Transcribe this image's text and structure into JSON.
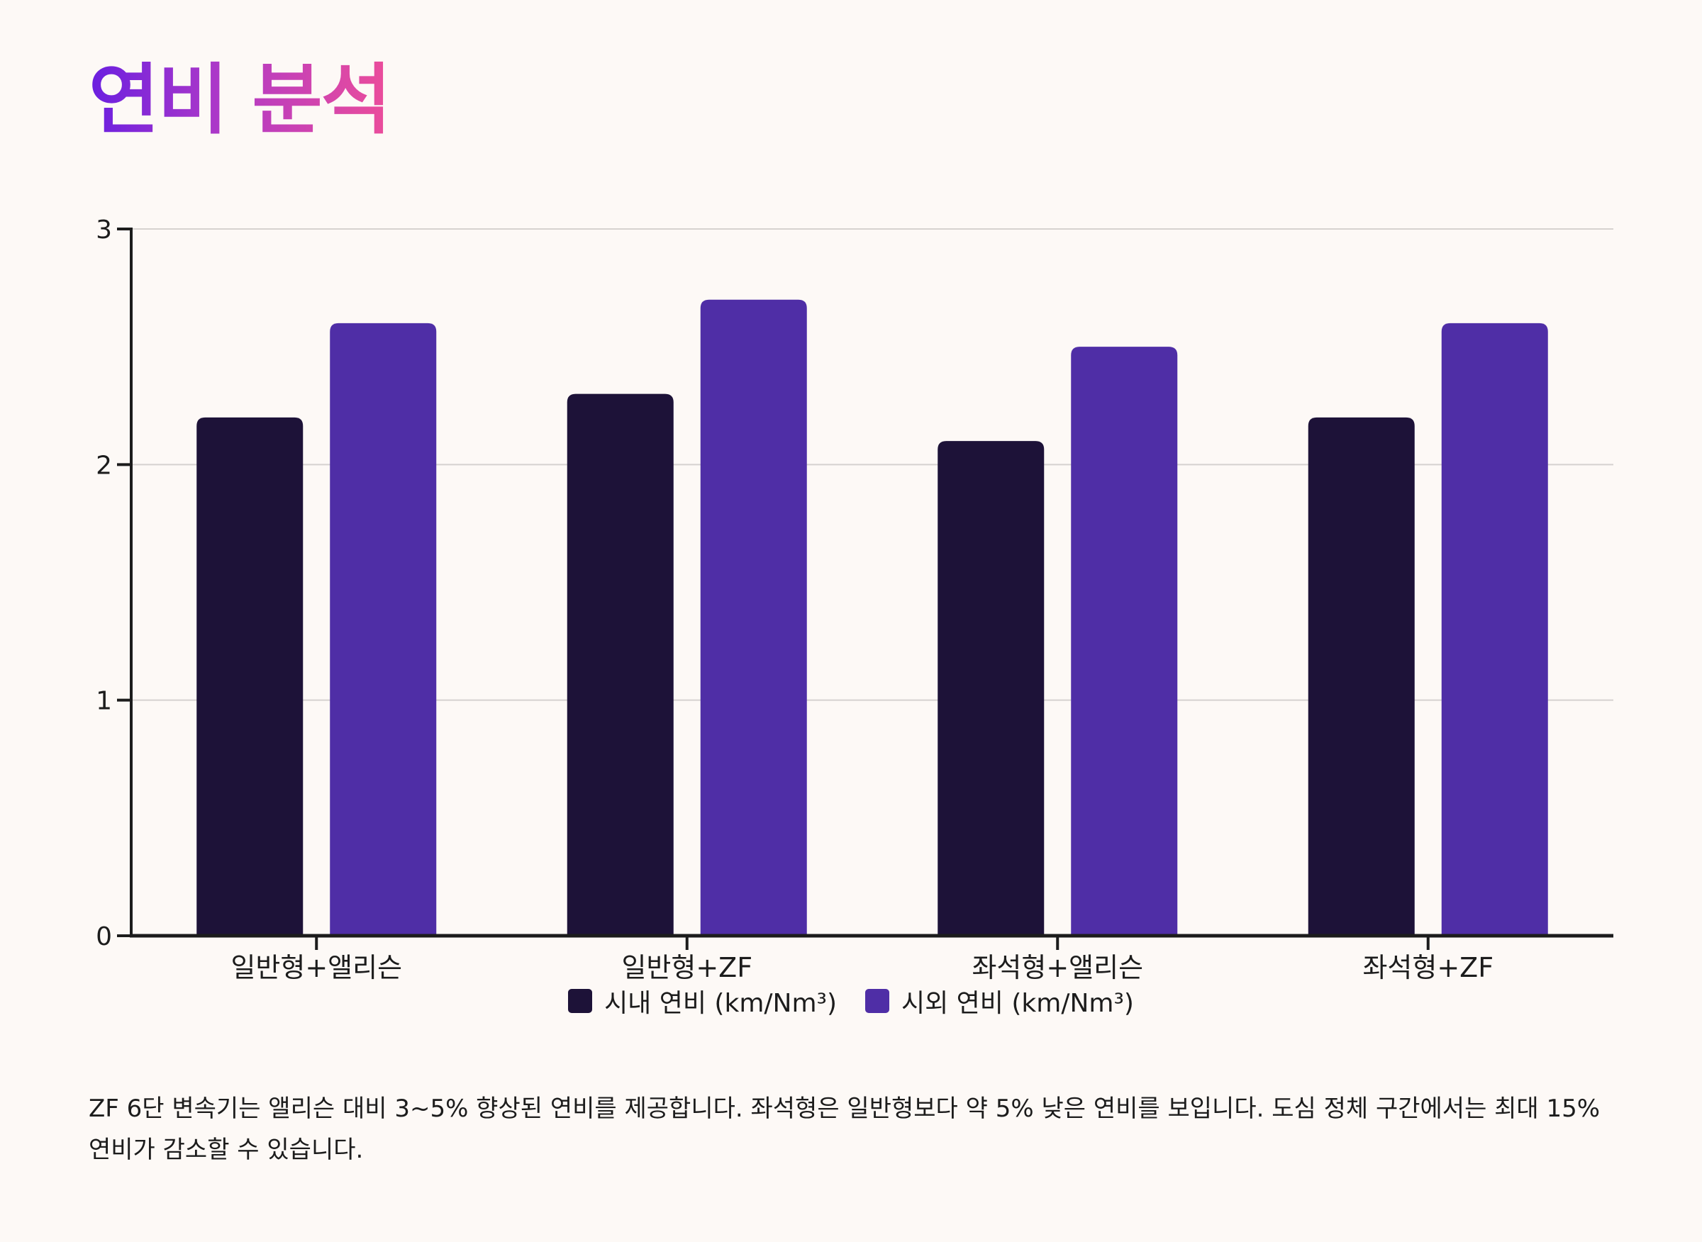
{
  "title": "연비 분석",
  "description": "ZF 6단 변속기는 앨리슨 대비 3~5% 향상된 연비를 제공합니다. 좌석형은 일반형보다 약 5% 낮은 연비를 보입니다. 도심 정체 구간에서는 최대 15% 연비가 감소할 수 있습니다.",
  "chart_data": {
    "type": "bar",
    "categories": [
      "일반형+앨리슨",
      "일반형+ZF",
      "좌석형+앨리슨",
      "좌석형+ZF"
    ],
    "series": [
      {
        "name": "시내 연비 (km/Nm³)",
        "values": [
          2.2,
          2.3,
          2.1,
          2.2
        ],
        "color": "#1d1238"
      },
      {
        "name": "시외 연비 (km/Nm³)",
        "values": [
          2.6,
          2.7,
          2.5,
          2.6
        ],
        "color": "#4f2ea6"
      }
    ],
    "ylim": [
      0,
      3
    ],
    "yticks": [
      0,
      1,
      2,
      3
    ],
    "grid": true,
    "legend_position": "bottom-center"
  }
}
